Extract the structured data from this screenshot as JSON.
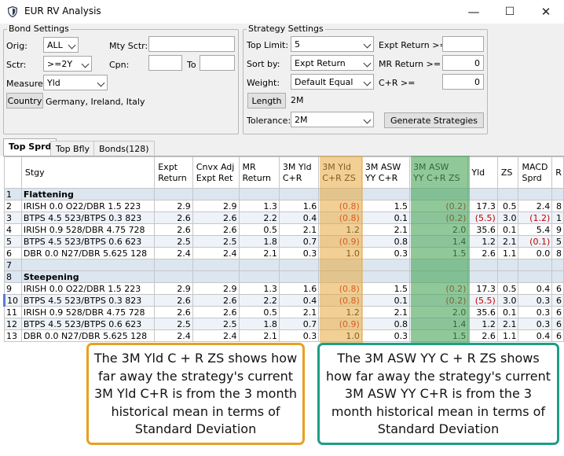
{
  "window": {
    "title": "EUR RV Analysis",
    "minimize_glyph": "—",
    "maximize_glyph": "☐",
    "close_glyph": "✕"
  },
  "bond_settings": {
    "legend": "Bond Settings",
    "orig_label": "Orig:",
    "orig_value": "ALL",
    "mty_sctr_label": "Mty Sctr:",
    "mty_sctr_value": "",
    "sctr_label": "Sctr:",
    "sctr_value": ">=2Y",
    "cpn_label": "Cpn:",
    "cpn_value": "",
    "to_label": "To",
    "to_value": "",
    "measure_label": "Measure:",
    "measure_value": "Yld",
    "country_button": "Country",
    "country_value": "Germany, Ireland, Italy"
  },
  "strategy_settings": {
    "legend": "Strategy Settings",
    "top_limit_label": "Top Limit:",
    "top_limit_value": "5",
    "expt_return_label": "Expt Return >=",
    "expt_return_value": "",
    "sort_by_label": "Sort by:",
    "sort_by_value": "Expt Return",
    "mr_return_label": "MR Return >=",
    "mr_return_value": "0",
    "weight_label": "Weight:",
    "weight_value": "Default Equal",
    "cr_label": "C+R >=",
    "cr_value": "0",
    "length_button": "Length",
    "length_value": "2M",
    "tolerance_label": "Tolerance:",
    "tolerance_value": "2M",
    "generate_button": "Generate Strategies"
  },
  "tabs": [
    {
      "label": "Top Sprd",
      "active": true
    },
    {
      "label": "Top Bfly",
      "active": false
    },
    {
      "label": "Bonds(128)",
      "active": false
    }
  ],
  "grid": {
    "columns": [
      "Stgy",
      "Expt\nReturn",
      "Cnvx Adj\nExpt Ret",
      "MR\nReturn",
      "3M Yld\nC+R",
      "3M Yld\nC+R ZS",
      "3M ASW\nYY C+R",
      "3M ASW\nYY C+R ZS",
      "Yld",
      "ZS",
      "MACD\nSprd",
      "R"
    ],
    "rows": [
      {
        "idx": "1",
        "type": "hdr",
        "cells": [
          "Flattening",
          "",
          "",
          "",
          "",
          "",
          "",
          "",
          "",
          "",
          "",
          ""
        ]
      },
      {
        "idx": "2",
        "type": "alt",
        "cells": [
          "IRISH 0.0 O22/DBR 1.5 223",
          "2.9",
          "2.9",
          "1.3",
          "1.6",
          "(0.8)",
          "1.5",
          "(0.2)",
          "17.3",
          "0.5",
          "2.4",
          "8"
        ]
      },
      {
        "idx": "3",
        "type": "alt2",
        "cells": [
          "BTPS 4.5 523/BTPS 0.3 823",
          "2.6",
          "2.6",
          "2.2",
          "0.4",
          "(0.8)",
          "0.1",
          "(0.2)",
          "(5.5)",
          "3.0",
          "(1.2)",
          "1"
        ]
      },
      {
        "idx": "4",
        "type": "alt",
        "cells": [
          "IRISH 0.9 528/DBR 4.75 728",
          "2.6",
          "2.6",
          "0.5",
          "2.1",
          "1.2",
          "2.1",
          "2.0",
          "35.6",
          "0.1",
          "5.4",
          "9"
        ]
      },
      {
        "idx": "5",
        "type": "alt2",
        "cells": [
          "BTPS 4.5 523/BTPS 0.6 623",
          "2.5",
          "2.5",
          "1.8",
          "0.7",
          "(0.9)",
          "0.8",
          "1.4",
          "1.2",
          "2.1",
          "(0.1)",
          "5"
        ]
      },
      {
        "idx": "6",
        "type": "alt",
        "cells": [
          "DBR 0.0 N27/DBR 5.625 128",
          "2.4",
          "2.4",
          "2.1",
          "0.3",
          "1.0",
          "0.3",
          "1.5",
          "2.6",
          "1.1",
          "0.0",
          "8"
        ]
      },
      {
        "idx": "7",
        "type": "empty",
        "cells": [
          "",
          "",
          "",
          "",
          "",
          "",
          "",
          "",
          "",
          "",
          "",
          ""
        ]
      },
      {
        "idx": "8",
        "type": "hdr",
        "cells": [
          "Steepening",
          "",
          "",
          "",
          "",
          "",
          "",
          "",
          "",
          "",
          "",
          ""
        ]
      },
      {
        "idx": "9",
        "type": "alt",
        "cells": [
          "IRISH 0.0 O22/DBR 1.5 223",
          "2.9",
          "2.9",
          "1.3",
          "1.6",
          "(0.8)",
          "1.5",
          "(0.2)",
          "17.3",
          "0.5",
          "0.4",
          "6"
        ]
      },
      {
        "idx": "10",
        "type": "alt2",
        "cells": [
          "BTPS 4.5 523/BTPS 0.3 823",
          "2.6",
          "2.6",
          "2.2",
          "0.4",
          "(0.8)",
          "0.1",
          "(0.2)",
          "(5.5)",
          "3.0",
          "0.3",
          "6"
        ]
      },
      {
        "idx": "11",
        "type": "alt",
        "cells": [
          "IRISH 0.9 528/DBR 4.75 728",
          "2.6",
          "2.6",
          "0.5",
          "2.1",
          "1.2",
          "2.1",
          "2.0",
          "35.6",
          "0.1",
          "0.3",
          "6"
        ]
      },
      {
        "idx": "12",
        "type": "alt2",
        "cells": [
          "BTPS 4.5 523/BTPS 0.6 623",
          "2.5",
          "2.5",
          "1.8",
          "0.7",
          "(0.9)",
          "0.8",
          "1.4",
          "1.2",
          "2.1",
          "0.3",
          "6"
        ]
      },
      {
        "idx": "13",
        "type": "alt",
        "cells": [
          "DBR 0.0 N27/DBR 5.625 128",
          "2.4",
          "2.4",
          "2.1",
          "0.3",
          "1.0",
          "0.3",
          "1.5",
          "2.6",
          "1.1",
          "0.4",
          "6"
        ]
      }
    ]
  },
  "callouts": {
    "yld": "The 3M Yld C + R ZS shows how far away the strategy's current 3M Yld C+R is from the 3 month historical mean in terms of Standard Deviation",
    "asw": "The 3M ASW YY C + R ZS shows how far away the strategy's current 3M ASW YY C+R is from the 3 month historical mean in terms of Standard Deviation"
  },
  "colors": {
    "yld_highlight": "#e8a83c",
    "asw_highlight": "#4ca65c",
    "negative_text": "#c00000",
    "group_row_bg": "#dce6f1"
  },
  "icons": {
    "app": "shield-icon",
    "minimize": "minimize-icon",
    "maximize": "maximize-icon",
    "close": "close-icon"
  }
}
